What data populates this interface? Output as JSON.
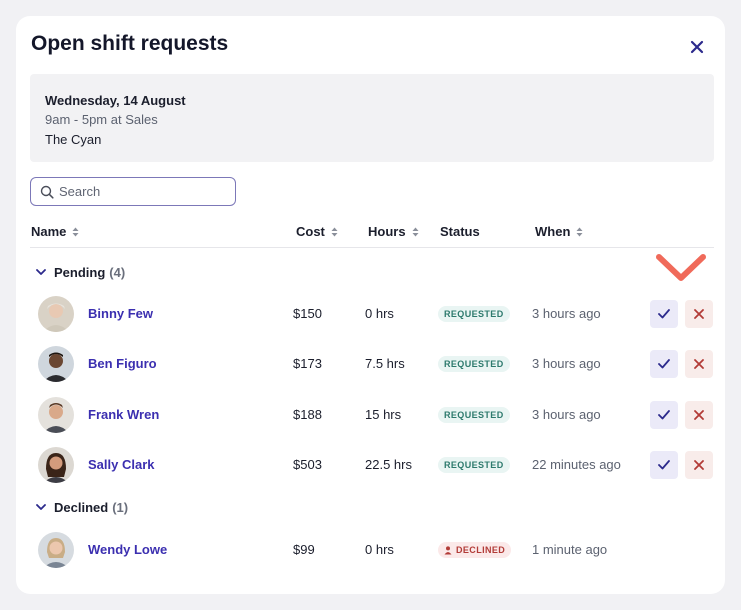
{
  "modal": {
    "title": "Open shift requests",
    "close_icon": "close-icon"
  },
  "shift": {
    "date": "Wednesday, 14 August",
    "time": "9am - 5pm at Sales",
    "location": "The Cyan"
  },
  "search": {
    "placeholder": "Search",
    "value": ""
  },
  "columns": {
    "name": "Name",
    "cost": "Cost",
    "hours": "Hours",
    "status": "Status",
    "when": "When"
  },
  "groups": {
    "pending": {
      "label": "Pending",
      "count": "(4)"
    },
    "declined": {
      "label": "Declined",
      "count": "(1)"
    }
  },
  "pending_rows": [
    {
      "name": "Binny Few",
      "cost": "$150",
      "hours": "0 hrs",
      "status": "REQUESTED",
      "when": "3 hours ago"
    },
    {
      "name": "Ben Figuro",
      "cost": "$173",
      "hours": "7.5 hrs",
      "status": "REQUESTED",
      "when": "3 hours ago"
    },
    {
      "name": "Frank Wren",
      "cost": "$188",
      "hours": "15 hrs",
      "status": "REQUESTED",
      "when": "3 hours ago"
    },
    {
      "name": "Sally Clark",
      "cost": "$503",
      "hours": "22.5 hrs",
      "status": "REQUESTED",
      "when": "22 minutes ago"
    }
  ],
  "declined_rows": [
    {
      "name": "Wendy Lowe",
      "cost": "$99",
      "hours": "0 hrs",
      "status": "DECLINED",
      "when": "1 minute ago"
    }
  ],
  "colors": {
    "accent": "#3b2fb0",
    "requested_badge": "#2d7a6d",
    "declined_badge": "#b23b37",
    "annotation": "#f06a5a"
  }
}
